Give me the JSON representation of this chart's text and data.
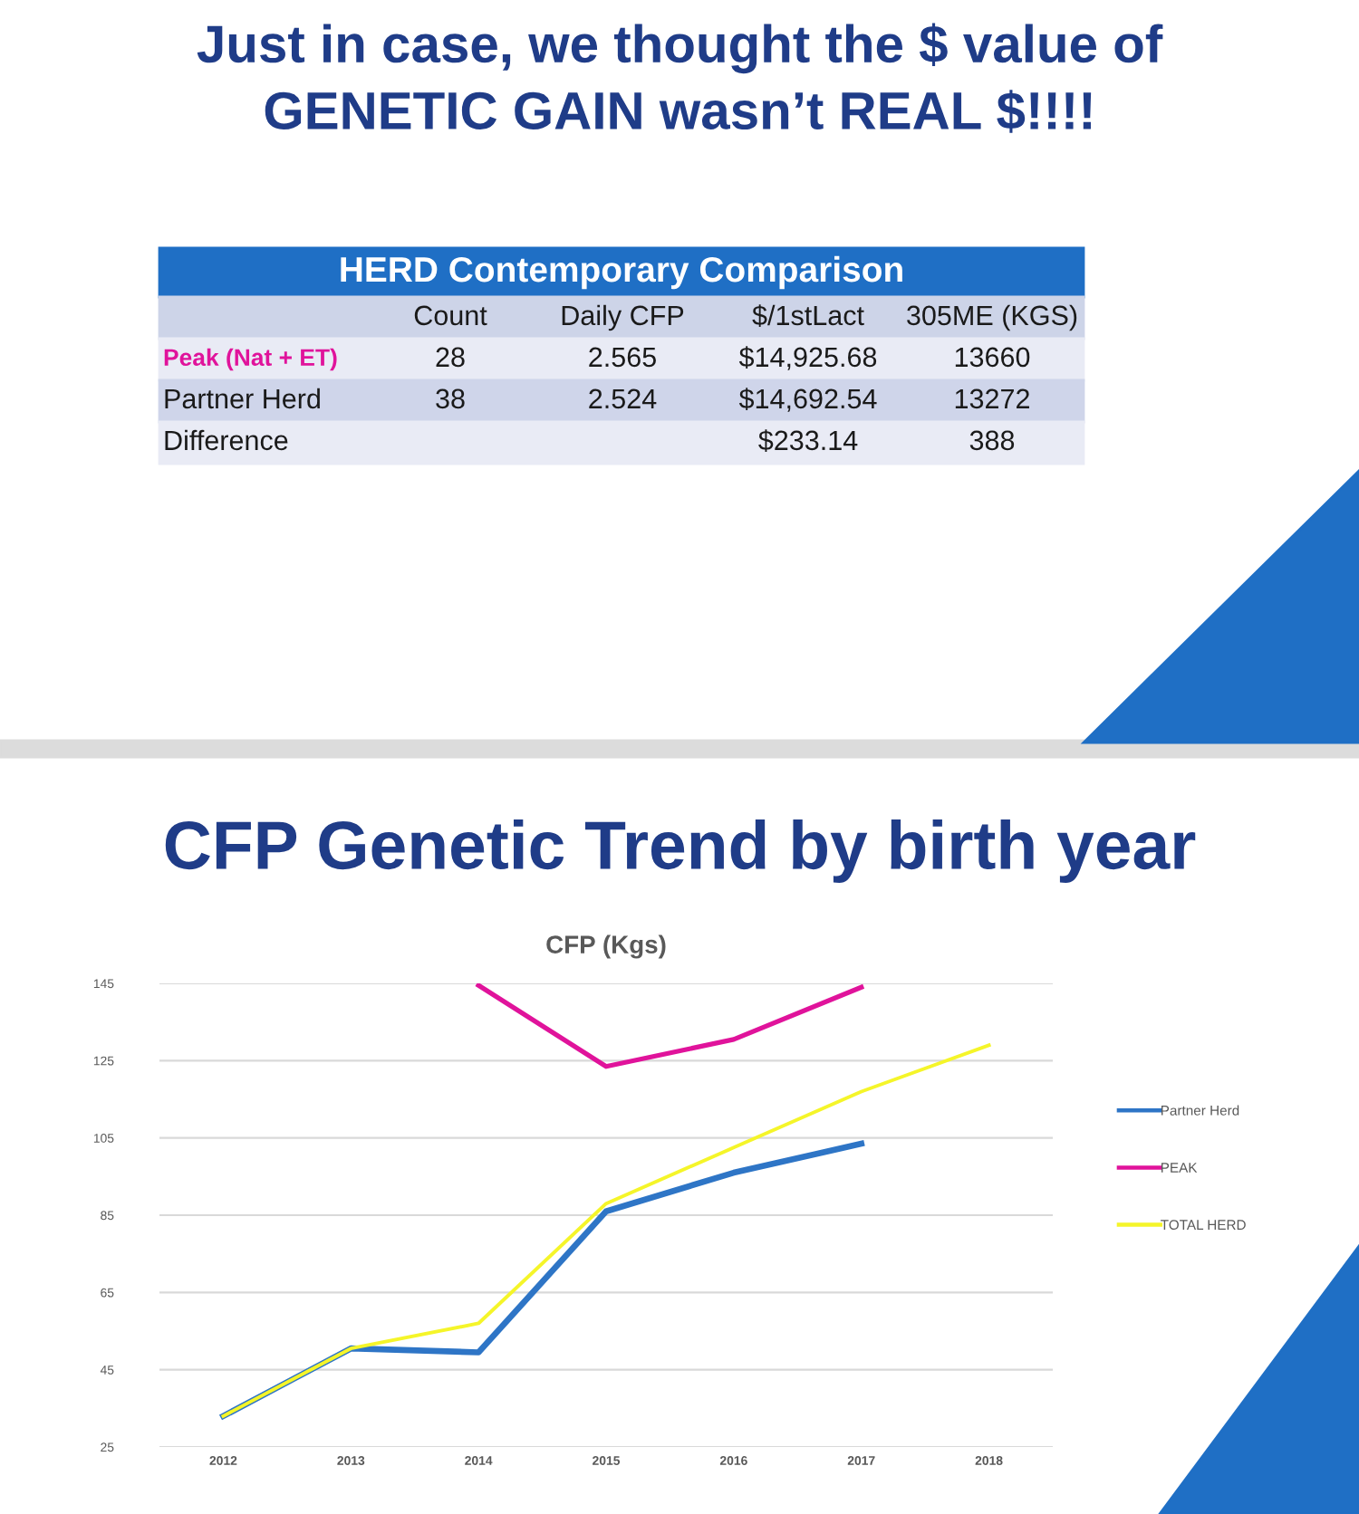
{
  "chart_data": [
    {
      "type": "other",
      "title": "Just in case, we thought the $ value of\nGENETIC GAIN wasn’t REAL $!!!!",
      "subtitle": "HERD Contemporary Comparison",
      "categories": [
        null,
        "Count",
        "Daily CFP",
        "$/1stLact",
        "305ME (KGS)"
      ],
      "y_categories": [
        "Peak (Nat + ET)",
        "Partner Herd",
        "Difference"
      ],
      "colors": [
        "#e0139b",
        "#1a1a1a",
        "#1a1a1a"
      ],
      "cell_labels": [
        [
          "28",
          "2.565",
          "$14,925.68",
          "13660"
        ],
        [
          "38",
          "2.524",
          "$14,692.54",
          "13272"
        ],
        [
          null,
          null,
          "$233.14",
          "388"
        ]
      ]
    },
    {
      "type": "line",
      "title": "CFP Genetic Trend by birth year",
      "subtitle": "CFP (Kgs)",
      "categories": [
        "2012",
        "2013",
        "2014",
        "2015",
        "2016",
        "2017",
        "2018"
      ],
      "series": [
        {
          "name": "Partner Herd",
          "color": "#2e75c6",
          "values": [
            33,
            50.5,
            49.5,
            86,
            96,
            103.5,
            null
          ]
        },
        {
          "name": "PEAK",
          "color": "#e0139b",
          "values": [
            null,
            null,
            144.5,
            123.5,
            130.5,
            144,
            null
          ]
        },
        {
          "name": "TOTAL HERD",
          "color": "#f5f529",
          "values": [
            33,
            50.5,
            57,
            88,
            102.5,
            117,
            129
          ]
        }
      ],
      "ylim": [
        25,
        145
      ],
      "yticks": [
        25,
        45,
        65,
        85,
        105,
        125,
        145
      ],
      "grid": "y",
      "legend": "right",
      "marker": "none",
      "line_style": "solid"
    }
  ]
}
